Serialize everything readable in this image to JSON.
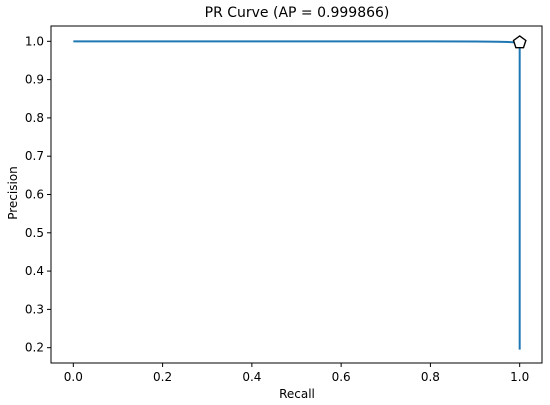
{
  "chart_data": {
    "type": "line",
    "title": "PR Curve (AP = 0.999866)",
    "xlabel": "Recall",
    "ylabel": "Precision",
    "xlim": [
      -0.05,
      1.05
    ],
    "ylim": [
      0.16,
      1.04
    ],
    "xticks": [
      0.0,
      0.2,
      0.4,
      0.6,
      0.8,
      1.0
    ],
    "yticks": [
      0.2,
      0.3,
      0.4,
      0.5,
      0.6,
      0.7,
      0.8,
      0.9,
      1.0
    ],
    "xtick_labels": [
      "0.0",
      "0.2",
      "0.4",
      "0.6",
      "0.8",
      "1.0"
    ],
    "ytick_labels": [
      "0.2",
      "0.3",
      "0.4",
      "0.5",
      "0.6",
      "0.7",
      "0.8",
      "0.9",
      "1.0"
    ],
    "grid": false,
    "series": [
      {
        "color": "#1f77b4",
        "x": [
          0.0,
          0.2,
          0.4,
          0.6,
          0.8,
          0.9,
          0.95,
          0.98,
          0.995,
          1.0,
          1.0,
          1.0
        ],
        "y": [
          1.0,
          1.0,
          1.0,
          1.0,
          1.0,
          0.9995,
          0.999,
          0.998,
          0.997,
          0.996,
          0.6,
          0.195
        ]
      }
    ],
    "marker": {
      "shape": "pentagon",
      "x": 1.0,
      "y": 0.997,
      "fill": "#ffffff",
      "edge": "#000000"
    }
  }
}
